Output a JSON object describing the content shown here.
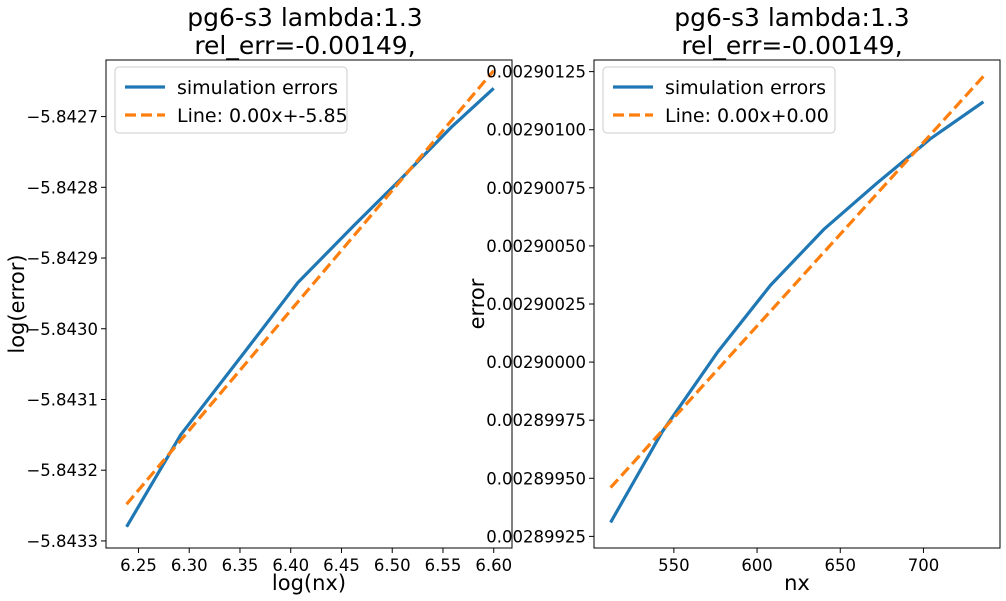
{
  "chart_data": [
    {
      "type": "line",
      "title": [
        "pg6-s3 lambda:1.3",
        "rel_err=-0.00149,"
      ],
      "xlabel": "log(nx)",
      "ylabel": "log(error)",
      "xlim": [
        6.218,
        6.618
      ],
      "ylim": [
        -5.84331,
        -5.84262
      ],
      "xticks": [
        6.25,
        6.3,
        6.35,
        6.4,
        6.45,
        6.5,
        6.55,
        6.6
      ],
      "xtick_labels": [
        "6.25",
        "6.30",
        "6.35",
        "6.40",
        "6.45",
        "6.50",
        "6.55",
        "6.60"
      ],
      "yticks": [
        -5.8433,
        -5.8432,
        -5.8431,
        -5.843,
        -5.8429,
        -5.8428,
        -5.8427
      ],
      "ytick_labels": [
        "−5.8433",
        "−5.8432",
        "−5.8431",
        "−5.8430",
        "−5.8429",
        "−5.8428",
        "−5.8427"
      ],
      "grid": false,
      "legend_position": "top-left",
      "series": [
        {
          "name": "simulation errors",
          "color": "#1f77b4",
          "style": "solid",
          "x": [
            6.2383,
            6.2916,
            6.3561,
            6.4069,
            6.4615,
            6.5073,
            6.5582,
            6.6
          ],
          "y": [
            -5.84328,
            -5.84315,
            -5.84303,
            -5.842935,
            -5.842855,
            -5.84279,
            -5.842715,
            -5.84266
          ]
        },
        {
          "name": "Line: 0.00x+-5.85",
          "color": "#ff7f0e",
          "style": "dashed",
          "x": [
            6.2383,
            6.6
          ],
          "y": [
            -5.843248,
            -5.842635
          ]
        }
      ]
    },
    {
      "type": "line",
      "title": [
        "pg6-s3 lambda:1.3",
        "rel_err=-0.00149,"
      ],
      "xlabel": "nx",
      "ylabel": "error",
      "xlim": [
        502,
        746
      ],
      "ylim": [
        0.0028992,
        0.0029013
      ],
      "xticks": [
        550,
        600,
        650,
        700
      ],
      "xtick_labels": [
        "550",
        "600",
        "650",
        "700"
      ],
      "yticks": [
        0.00289925,
        0.0028995,
        0.00289975,
        0.0029,
        0.00290025,
        0.0029005,
        0.00290075,
        0.002901,
        0.00290125
      ],
      "ytick_labels": [
        "0.00289925",
        "0.00289950",
        "0.00289975",
        "0.00290000",
        "0.00290025",
        "0.00290050",
        "0.00290075",
        "0.00290100",
        "0.00290125"
      ],
      "grid": false,
      "legend_position": "top-left",
      "series": [
        {
          "name": "simulation errors",
          "color": "#1f77b4",
          "style": "solid",
          "x": [
            512,
            543,
            576,
            608,
            640,
            672,
            704,
            736
          ],
          "y": [
            0.00289931,
            0.0028997,
            0.00290004,
            0.00290033,
            0.00290057,
            0.00290077,
            0.00290096,
            0.00290112
          ]
        },
        {
          "name": "Line: 0.00x+0.00",
          "color": "#ff7f0e",
          "style": "dashed",
          "x": [
            512,
            736
          ],
          "y": [
            0.00289946,
            0.00290123
          ]
        }
      ]
    }
  ]
}
